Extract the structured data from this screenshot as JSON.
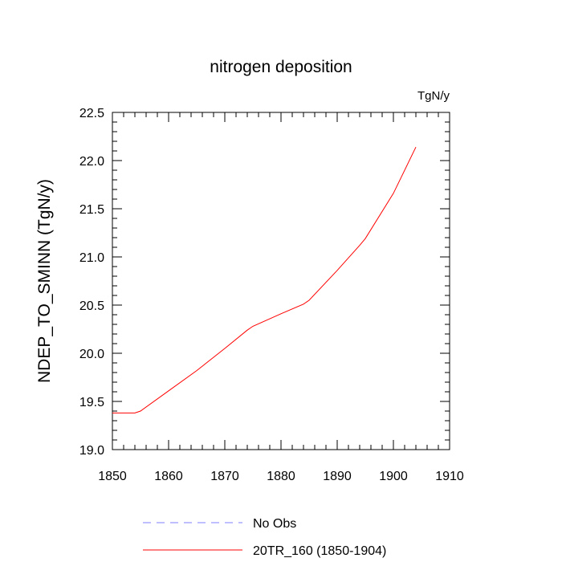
{
  "chart_data": {
    "type": "line",
    "title": "nitrogen deposition",
    "units": "TgN/y",
    "ylabel": "NDEP_TO_SMINN  (TgN/y)",
    "xlabel": "",
    "xlim": [
      1850,
      1910
    ],
    "ylim": [
      19.0,
      22.5
    ],
    "xticks": [
      1850,
      1860,
      1870,
      1880,
      1890,
      1900,
      1910
    ],
    "yticks": [
      19.0,
      19.5,
      20.0,
      20.5,
      21.0,
      21.5,
      22.0,
      22.5
    ],
    "ytick_labels": [
      "19.0",
      "19.5",
      "20.0",
      "20.5",
      "21.0",
      "21.5",
      "22.0",
      "22.5"
    ],
    "series": [
      {
        "name": "No Obs",
        "color": "#7f7fff",
        "style": "dashed",
        "x": [],
        "y": []
      },
      {
        "name": "20TR_160 (1850-1904)",
        "color": "#ff0000",
        "style": "solid",
        "x": [
          1850,
          1854,
          1855,
          1860,
          1865,
          1870,
          1874,
          1875,
          1880,
          1884,
          1885,
          1890,
          1894,
          1895,
          1900,
          1904
        ],
        "y": [
          19.38,
          19.38,
          19.4,
          19.61,
          19.82,
          20.05,
          20.24,
          20.28,
          20.41,
          20.51,
          20.55,
          20.86,
          21.12,
          21.19,
          21.66,
          22.14
        ]
      }
    ]
  }
}
